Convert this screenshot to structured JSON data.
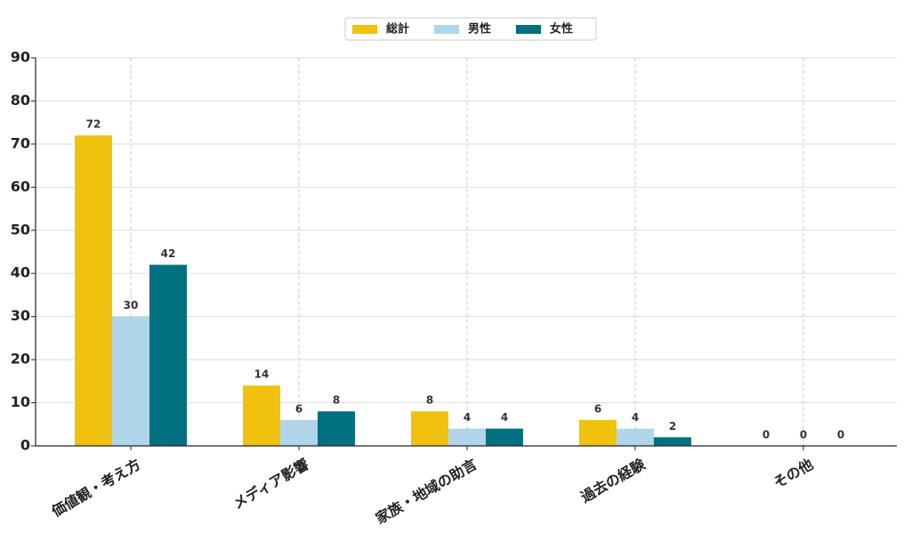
{
  "chart_data": {
    "type": "bar",
    "categories": [
      "価値観・考え方",
      "メディア影響",
      "家族・地域の助言",
      "過去の経験",
      "その他"
    ],
    "series": [
      {
        "name": "総計",
        "color": "#f0c20f",
        "values": [
          72,
          14,
          8,
          6,
          0
        ]
      },
      {
        "name": "男性",
        "color": "#b0d5e9",
        "values": [
          30,
          6,
          4,
          4,
          0
        ]
      },
      {
        "name": "女性",
        "color": "#006f80",
        "values": [
          42,
          8,
          4,
          2,
          0
        ]
      }
    ],
    "ylim": [
      0,
      90
    ],
    "yticks": [
      0,
      10,
      20,
      30,
      40,
      50,
      60,
      70,
      80,
      90
    ],
    "grid": true,
    "legend": "top"
  }
}
